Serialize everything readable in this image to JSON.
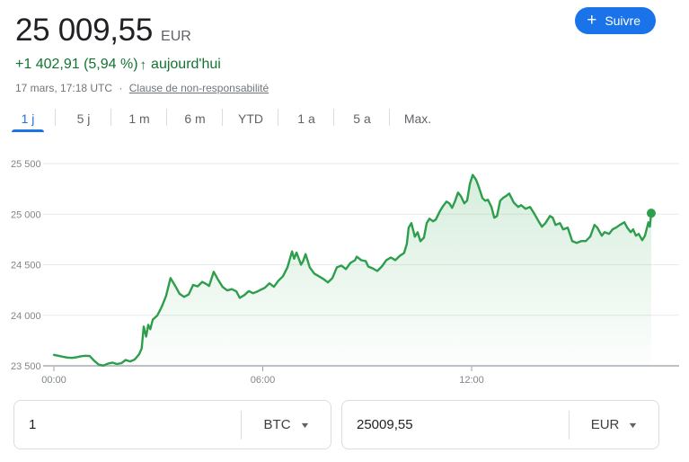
{
  "header": {
    "price": "25 009,55",
    "currency_label": "EUR",
    "change_text": "+1 402,91 (5,94 %)",
    "change_arrow": "↑",
    "change_period": "aujourd'hui",
    "timestamp": "17 mars, 17:18 UTC",
    "separator": "·",
    "disclaimer_link": "Clause de non-responsabilité",
    "follow_button": {
      "icon": "+",
      "label": "Suivre"
    }
  },
  "tabs": [
    {
      "label": "1 j",
      "active": true
    },
    {
      "label": "5 j",
      "active": false
    },
    {
      "label": "1 m",
      "active": false
    },
    {
      "label": "6 m",
      "active": false
    },
    {
      "label": "YTD",
      "active": false
    },
    {
      "label": "1 a",
      "active": false
    },
    {
      "label": "5 a",
      "active": false
    },
    {
      "label": "Max.",
      "active": false
    }
  ],
  "colors": {
    "accent_blue": "#1a73e8",
    "text_green": "#137333",
    "line_green": "#2d9e4c",
    "gridline": "#e8eaed",
    "axis": "#bdc1c6",
    "axis_label": "#80868b"
  },
  "chart_data": {
    "type": "line",
    "title": "",
    "xlabel": "",
    "ylabel": "",
    "x_tick_labels": [
      "00:00",
      "06:00",
      "12:00"
    ],
    "x_tick_hours": [
      0,
      6,
      12
    ],
    "y_tick_labels": [
      "25 500",
      "25 000",
      "24 500",
      "24 000",
      "23 500"
    ],
    "y_tick_values": [
      25500,
      25000,
      24500,
      24000,
      23500
    ],
    "ylim": [
      23500,
      25500
    ],
    "xlim_hours": [
      0,
      18
    ],
    "grid": true,
    "legend": false,
    "line_color": "#2d9e4c",
    "fill_color_top": "rgba(52,168,83,0.20)",
    "fill_color_bottom": "rgba(52,168,83,0.01)",
    "last_value": 25009.55,
    "points": [
      [
        0,
        23608
      ],
      [
        0.13,
        23600
      ],
      [
        0.26,
        23590
      ],
      [
        0.39,
        23582
      ],
      [
        0.52,
        23578
      ],
      [
        0.65,
        23585
      ],
      [
        0.77,
        23594
      ],
      [
        0.9,
        23600
      ],
      [
        1.03,
        23597
      ],
      [
        1.16,
        23550
      ],
      [
        1.29,
        23512
      ],
      [
        1.42,
        23503
      ],
      [
        1.55,
        23521
      ],
      [
        1.68,
        23532
      ],
      [
        1.81,
        23518
      ],
      [
        1.94,
        23526
      ],
      [
        2.06,
        23558
      ],
      [
        2.19,
        23544
      ],
      [
        2.32,
        23562
      ],
      [
        2.45,
        23615
      ],
      [
        2.52,
        23672
      ],
      [
        2.58,
        23888
      ],
      [
        2.65,
        23790
      ],
      [
        2.71,
        23905
      ],
      [
        2.77,
        23862
      ],
      [
        2.84,
        23958
      ],
      [
        2.97,
        23998
      ],
      [
        3.1,
        24085
      ],
      [
        3.22,
        24190
      ],
      [
        3.35,
        24368
      ],
      [
        3.48,
        24295
      ],
      [
        3.61,
        24212
      ],
      [
        3.74,
        24182
      ],
      [
        3.87,
        24206
      ],
      [
        4,
        24300
      ],
      [
        4.13,
        24286
      ],
      [
        4.26,
        24330
      ],
      [
        4.39,
        24306
      ],
      [
        4.46,
        24290
      ],
      [
        4.59,
        24430
      ],
      [
        4.72,
        24350
      ],
      [
        4.85,
        24280
      ],
      [
        4.98,
        24246
      ],
      [
        5.11,
        24258
      ],
      [
        5.24,
        24236
      ],
      [
        5.34,
        24172
      ],
      [
        5.47,
        24200
      ],
      [
        5.6,
        24240
      ],
      [
        5.72,
        24218
      ],
      [
        5.85,
        24236
      ],
      [
        5.98,
        24258
      ],
      [
        6.06,
        24272
      ],
      [
        6.19,
        24316
      ],
      [
        6.32,
        24281
      ],
      [
        6.45,
        24342
      ],
      [
        6.58,
        24386
      ],
      [
        6.71,
        24474
      ],
      [
        6.84,
        24632
      ],
      [
        6.9,
        24560
      ],
      [
        6.97,
        24620
      ],
      [
        7.1,
        24500
      ],
      [
        7.16,
        24535
      ],
      [
        7.23,
        24605
      ],
      [
        7.35,
        24474
      ],
      [
        7.48,
        24412
      ],
      [
        7.61,
        24386
      ],
      [
        7.74,
        24360
      ],
      [
        7.87,
        24325
      ],
      [
        8,
        24368
      ],
      [
        8.13,
        24474
      ],
      [
        8.26,
        24491
      ],
      [
        8.39,
        24456
      ],
      [
        8.52,
        24518
      ],
      [
        8.65,
        24544
      ],
      [
        8.7,
        24579
      ],
      [
        8.83,
        24544
      ],
      [
        8.96,
        24535
      ],
      [
        9.03,
        24482
      ],
      [
        9.16,
        24464
      ],
      [
        9.29,
        24438
      ],
      [
        9.42,
        24482
      ],
      [
        9.55,
        24545
      ],
      [
        9.68,
        24571
      ],
      [
        9.81,
        24545
      ],
      [
        9.94,
        24589
      ],
      [
        10.06,
        24616
      ],
      [
        10.14,
        24705
      ],
      [
        10.19,
        24866
      ],
      [
        10.27,
        24911
      ],
      [
        10.37,
        24777
      ],
      [
        10.45,
        24821
      ],
      [
        10.53,
        24732
      ],
      [
        10.63,
        24768
      ],
      [
        10.71,
        24911
      ],
      [
        10.79,
        24955
      ],
      [
        10.89,
        24929
      ],
      [
        10.97,
        24946
      ],
      [
        11.1,
        25036
      ],
      [
        11.18,
        25080
      ],
      [
        11.28,
        25125
      ],
      [
        11.36,
        25107
      ],
      [
        11.44,
        25063
      ],
      [
        11.52,
        25125
      ],
      [
        11.61,
        25214
      ],
      [
        11.69,
        25179
      ],
      [
        11.79,
        25107
      ],
      [
        11.87,
        25134
      ],
      [
        11.95,
        25300
      ],
      [
        12.03,
        25388
      ],
      [
        12.13,
        25340
      ],
      [
        12.21,
        25266
      ],
      [
        12.31,
        25160
      ],
      [
        12.39,
        25133
      ],
      [
        12.47,
        25142
      ],
      [
        12.57,
        25071
      ],
      [
        12.65,
        24965
      ],
      [
        12.73,
        24982
      ],
      [
        12.82,
        25133
      ],
      [
        12.9,
        25160
      ],
      [
        12.98,
        25177
      ],
      [
        13.08,
        25204
      ],
      [
        13.21,
        25115
      ],
      [
        13.34,
        25071
      ],
      [
        13.42,
        25089
      ],
      [
        13.55,
        25053
      ],
      [
        13.68,
        25071
      ],
      [
        13.81,
        25000
      ],
      [
        13.94,
        24920
      ],
      [
        14.02,
        24876
      ],
      [
        14.12,
        24911
      ],
      [
        14.25,
        24982
      ],
      [
        14.33,
        24965
      ],
      [
        14.41,
        24894
      ],
      [
        14.54,
        24911
      ],
      [
        14.63,
        24849
      ],
      [
        14.76,
        24867
      ],
      [
        14.89,
        24734
      ],
      [
        15.02,
        24716
      ],
      [
        15.15,
        24734
      ],
      [
        15.28,
        24734
      ],
      [
        15.41,
        24778
      ],
      [
        15.53,
        24894
      ],
      [
        15.61,
        24867
      ],
      [
        15.74,
        24787
      ],
      [
        15.82,
        24822
      ],
      [
        15.95,
        24805
      ],
      [
        16.05,
        24849
      ],
      [
        16.15,
        24867
      ],
      [
        16.26,
        24894
      ],
      [
        16.39,
        24920
      ],
      [
        16.47,
        24867
      ],
      [
        16.57,
        24822
      ],
      [
        16.64,
        24849
      ],
      [
        16.72,
        24787
      ],
      [
        16.8,
        24805
      ],
      [
        16.9,
        24743
      ],
      [
        16.98,
        24787
      ],
      [
        17.08,
        24920
      ],
      [
        17.12,
        24876
      ],
      [
        17.16,
        25009.55
      ]
    ]
  },
  "converter": {
    "from": {
      "value": "1",
      "currency": "BTC"
    },
    "to": {
      "value": "25009,55",
      "currency": "EUR"
    }
  }
}
